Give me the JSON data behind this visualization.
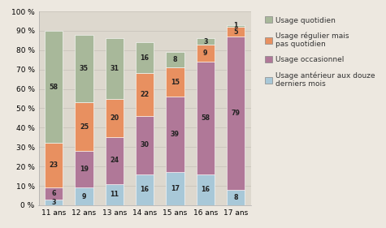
{
  "categories": [
    "11 ans",
    "12 ans",
    "13 ans",
    "14 ans",
    "15 ans",
    "16 ans",
    "17 ans"
  ],
  "series": {
    "antérieur": [
      3,
      9,
      11,
      16,
      17,
      16,
      8
    ],
    "occasionnel": [
      6,
      19,
      24,
      30,
      39,
      58,
      79
    ],
    "régulier": [
      23,
      25,
      20,
      22,
      15,
      9,
      5
    ],
    "quotidien": [
      58,
      35,
      31,
      16,
      8,
      3,
      1
    ]
  },
  "colors": {
    "antérieur": "#a8c8d8",
    "occasionnel": "#b07898",
    "régulier": "#e89060",
    "quotidien": "#a8b89a"
  },
  "legend_labels": [
    "Usage quotidien",
    "Usage régulier mais\npas quotidien",
    "Usage occasionnel",
    "Usage antérieur aux douze\nderniers mois"
  ],
  "legend_keys": [
    "quotidien",
    "régulier",
    "occasionnel",
    "antérieur"
  ],
  "background_color": "#ede8e0",
  "plot_bg_color": "#ddd8ce",
  "grid_color": "#ccc7be",
  "ylim": [
    0,
    100
  ],
  "ytick_labels": [
    "0 %",
    "10 %",
    "20 %",
    "30 %",
    "40 %",
    "50 %",
    "60 %",
    "70 %",
    "80 %",
    "90 %",
    "100 %"
  ],
  "bar_width": 0.6,
  "label_fontsize": 5.8,
  "tick_fontsize": 6.5,
  "legend_fontsize": 6.5
}
